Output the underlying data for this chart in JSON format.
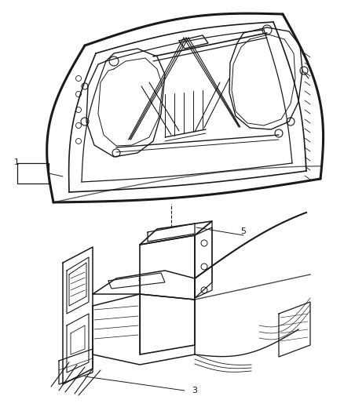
{
  "bg_color": "#ffffff",
  "line_color": "#1a1a1a",
  "label_color": "#000000",
  "fig_width": 4.38,
  "fig_height": 5.33,
  "dpi": 100
}
